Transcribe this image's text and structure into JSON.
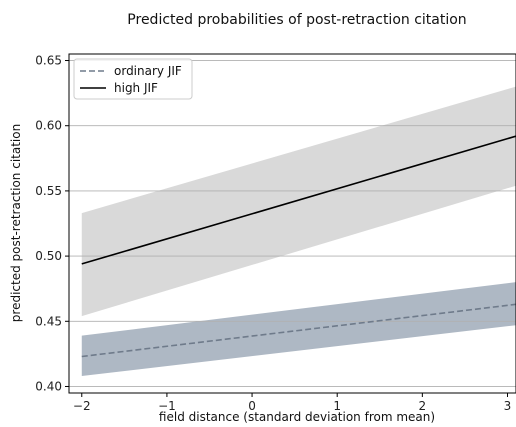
{
  "chart_data": {
    "type": "line",
    "title": "Predicted probabilities of post-retraction citation",
    "xlabel": "field distance (standard deviation from mean)",
    "ylabel": "predicted post-retraction citation",
    "xlim": [
      -2.15,
      3.1
    ],
    "ylim": [
      0.395,
      0.655
    ],
    "xticks": [
      -2,
      -1,
      0,
      1,
      2,
      3
    ],
    "xtick_labels": [
      "−2",
      "−1",
      "0",
      "1",
      "2",
      "3"
    ],
    "yticks": [
      0.4,
      0.45,
      0.5,
      0.55,
      0.6,
      0.65
    ],
    "ytick_labels": [
      "0.40",
      "0.45",
      "0.50",
      "0.55",
      "0.60",
      "0.65"
    ],
    "grid": "horizontal",
    "legend_position": "top-left",
    "series": [
      {
        "name": "ordinary JIF",
        "style": "dashed",
        "color": "#6f7b8b",
        "band_color": "#aeb8c4",
        "x": [
          -2,
          3.1
        ],
        "y": [
          0.423,
          0.463
        ],
        "lower": [
          0.408,
          0.447
        ],
        "upper": [
          0.439,
          0.48
        ]
      },
      {
        "name": "high JIF",
        "style": "solid",
        "color": "#000000",
        "band_color": "#d9d9d9",
        "x": [
          -2,
          3.1
        ],
        "y": [
          0.494,
          0.592
        ],
        "lower": [
          0.454,
          0.554
        ],
        "upper": [
          0.533,
          0.63
        ]
      }
    ]
  }
}
